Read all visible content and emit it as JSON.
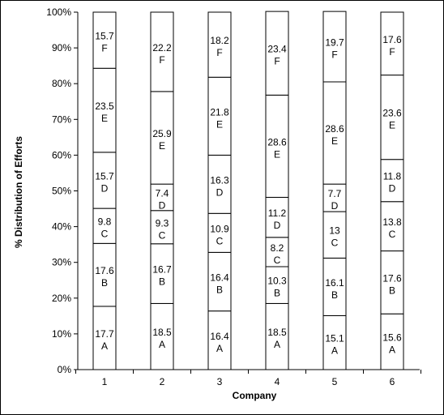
{
  "chart_data": {
    "type": "bar",
    "stacked": true,
    "orientation": "vertical",
    "xlabel": "Company",
    "ylabel": "% Distribution of  Efforts",
    "ylim": [
      0,
      100
    ],
    "y_ticks": [
      "0%",
      "10%",
      "20%",
      "30%",
      "40%",
      "50%",
      "60%",
      "70%",
      "80%",
      "90%",
      "100%"
    ],
    "categories": [
      "1",
      "2",
      "3",
      "4",
      "5",
      "6"
    ],
    "series": [
      {
        "name": "A",
        "values": [
          17.7,
          18.5,
          16.4,
          18.5,
          15.1,
          15.6
        ],
        "labels": [
          "17.7",
          "18.5",
          "16.4",
          "18.5",
          "15.1",
          "15.6"
        ]
      },
      {
        "name": "B",
        "values": [
          17.6,
          16.7,
          16.4,
          10.3,
          16.1,
          17.6
        ],
        "labels": [
          "17.6",
          "16.7",
          "16.4",
          "10.3",
          "16.1",
          "17.6"
        ]
      },
      {
        "name": "C",
        "values": [
          9.8,
          9.3,
          10.9,
          8.2,
          13,
          13.8
        ],
        "labels": [
          "9.8",
          "9.3",
          "10.9",
          "8.2",
          "13",
          "13.8"
        ]
      },
      {
        "name": "D",
        "values": [
          15.7,
          7.4,
          16.3,
          11.2,
          7.7,
          11.8
        ],
        "labels": [
          "15.7",
          "7.4",
          "16.3",
          "11.2",
          "7.7",
          "11.8"
        ]
      },
      {
        "name": "E",
        "values": [
          23.5,
          25.9,
          21.8,
          28.6,
          28.6,
          23.6
        ],
        "labels": [
          "23.5",
          "25.9",
          "21.8",
          "28.6",
          "28.6",
          "23.6"
        ]
      },
      {
        "name": "F",
        "values": [
          15.7,
          22.2,
          18.2,
          23.4,
          19.7,
          17.6
        ],
        "labels": [
          "15.7",
          "22.2",
          "18.2",
          "23.4",
          "19.7",
          "17.6"
        ]
      }
    ],
    "bar_fill": "#ffffff",
    "bar_stroke": "#000000",
    "grid": false,
    "legend": "none"
  }
}
